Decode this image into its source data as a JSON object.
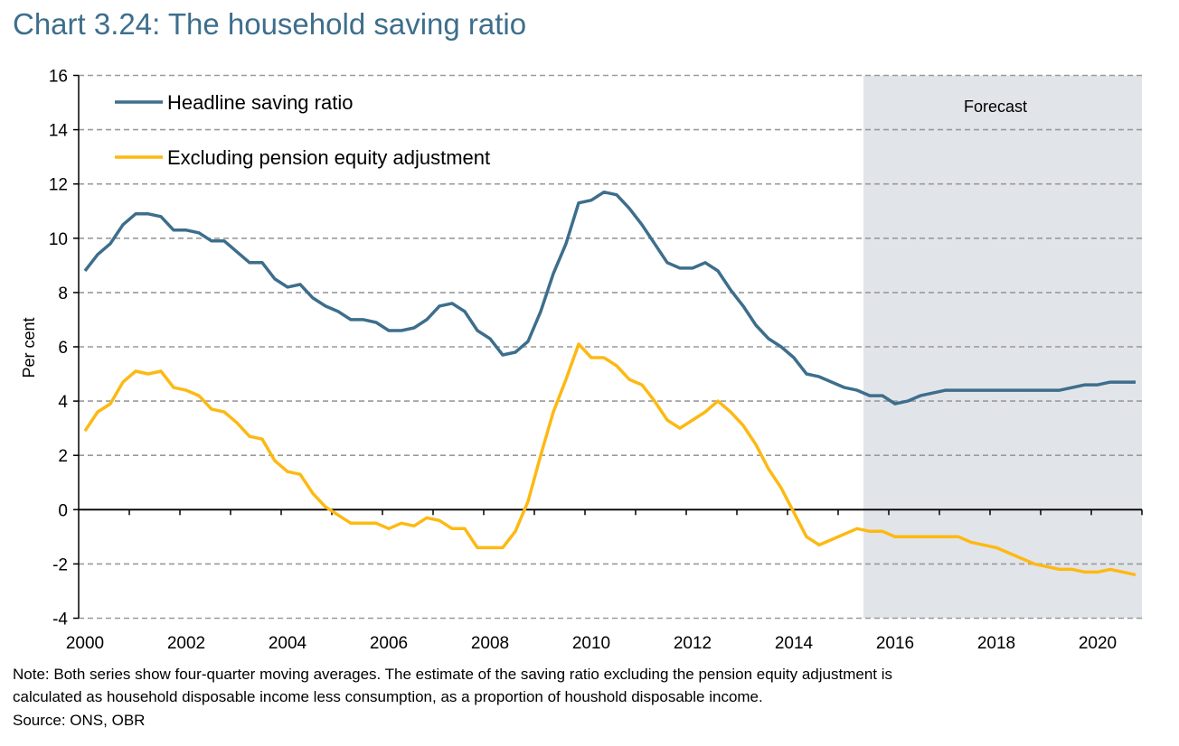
{
  "title": "Chart 3.24: The household saving ratio",
  "note_lines": [
    "Note: Both series show four-quarter moving averages. The estimate of the saving ratio excluding the pension equity adjustment is",
    "calculated as household disposable income less consumption, as a proportion of houshold disposable income."
  ],
  "source": "Source: ONS, OBR",
  "chart_data": {
    "type": "line",
    "title": "Chart 3.24: The household saving ratio",
    "xlabel": "",
    "ylabel": "Per cent",
    "ylim": [
      -4,
      16
    ],
    "yticks": [
      "-4",
      "-2",
      "0",
      "2",
      "4",
      "6",
      "8",
      "10",
      "12",
      "14",
      "16"
    ],
    "xticks": [
      "2000",
      "2002",
      "2004",
      "2006",
      "2008",
      "2010",
      "2012",
      "2014",
      "2016",
      "2018",
      "2020"
    ],
    "x_start": "2000Q1",
    "x_end": "2020Q4",
    "frequency": "quarterly",
    "grid": true,
    "legend_position": "top-left",
    "forecast": {
      "label": "Forecast",
      "from": "2015Q3",
      "color": "#E1E4E9"
    },
    "series": [
      {
        "name": "Headline saving ratio",
        "color": "#3D6E8C",
        "values": [
          8.8,
          9.4,
          9.8,
          10.5,
          10.9,
          10.9,
          10.8,
          10.3,
          10.3,
          10.2,
          9.9,
          9.9,
          9.5,
          9.1,
          9.1,
          8.5,
          8.2,
          8.3,
          7.8,
          7.5,
          7.3,
          7.0,
          7.0,
          6.9,
          6.6,
          6.6,
          6.7,
          7.0,
          7.5,
          7.6,
          7.3,
          6.6,
          6.3,
          5.7,
          5.8,
          6.2,
          7.3,
          8.7,
          9.8,
          11.3,
          11.4,
          11.7,
          11.6,
          11.1,
          10.5,
          9.8,
          9.1,
          8.9,
          8.9,
          9.1,
          8.8,
          8.1,
          7.5,
          6.8,
          6.3,
          6.0,
          5.6,
          5.0,
          4.9,
          4.7,
          4.5,
          4.4,
          4.2,
          4.2,
          3.9,
          4.0,
          4.2,
          4.3,
          4.4,
          4.4,
          4.4,
          4.4,
          4.4,
          4.4,
          4.4,
          4.4,
          4.4,
          4.4,
          4.5,
          4.6,
          4.6,
          4.7,
          4.7,
          4.7
        ]
      },
      {
        "name": "Excluding pension equity adjustment",
        "color": "#FDB913",
        "values": [
          2.9,
          3.6,
          3.9,
          4.7,
          5.1,
          5.0,
          5.1,
          4.5,
          4.4,
          4.2,
          3.7,
          3.6,
          3.2,
          2.7,
          2.6,
          1.8,
          1.4,
          1.3,
          0.6,
          0.1,
          -0.2,
          -0.5,
          -0.5,
          -0.5,
          -0.7,
          -0.5,
          -0.6,
          -0.3,
          -0.4,
          -0.7,
          -0.7,
          -1.4,
          -1.4,
          -1.4,
          -0.8,
          0.3,
          2.0,
          3.6,
          4.8,
          6.1,
          5.6,
          5.6,
          5.3,
          4.8,
          4.6,
          4.0,
          3.3,
          3.0,
          3.3,
          3.6,
          4.0,
          3.6,
          3.1,
          2.4,
          1.5,
          0.8,
          -0.1,
          -1.0,
          -1.3,
          -1.1,
          -0.9,
          -0.7,
          -0.8,
          -0.8,
          -1.0,
          -1.0,
          -1.0,
          -1.0,
          -1.0,
          -1.0,
          -1.2,
          -1.3,
          -1.4,
          -1.6,
          -1.8,
          -2.0,
          -2.1,
          -2.2,
          -2.2,
          -2.3,
          -2.3,
          -2.2,
          -2.3,
          -2.4
        ]
      }
    ]
  }
}
